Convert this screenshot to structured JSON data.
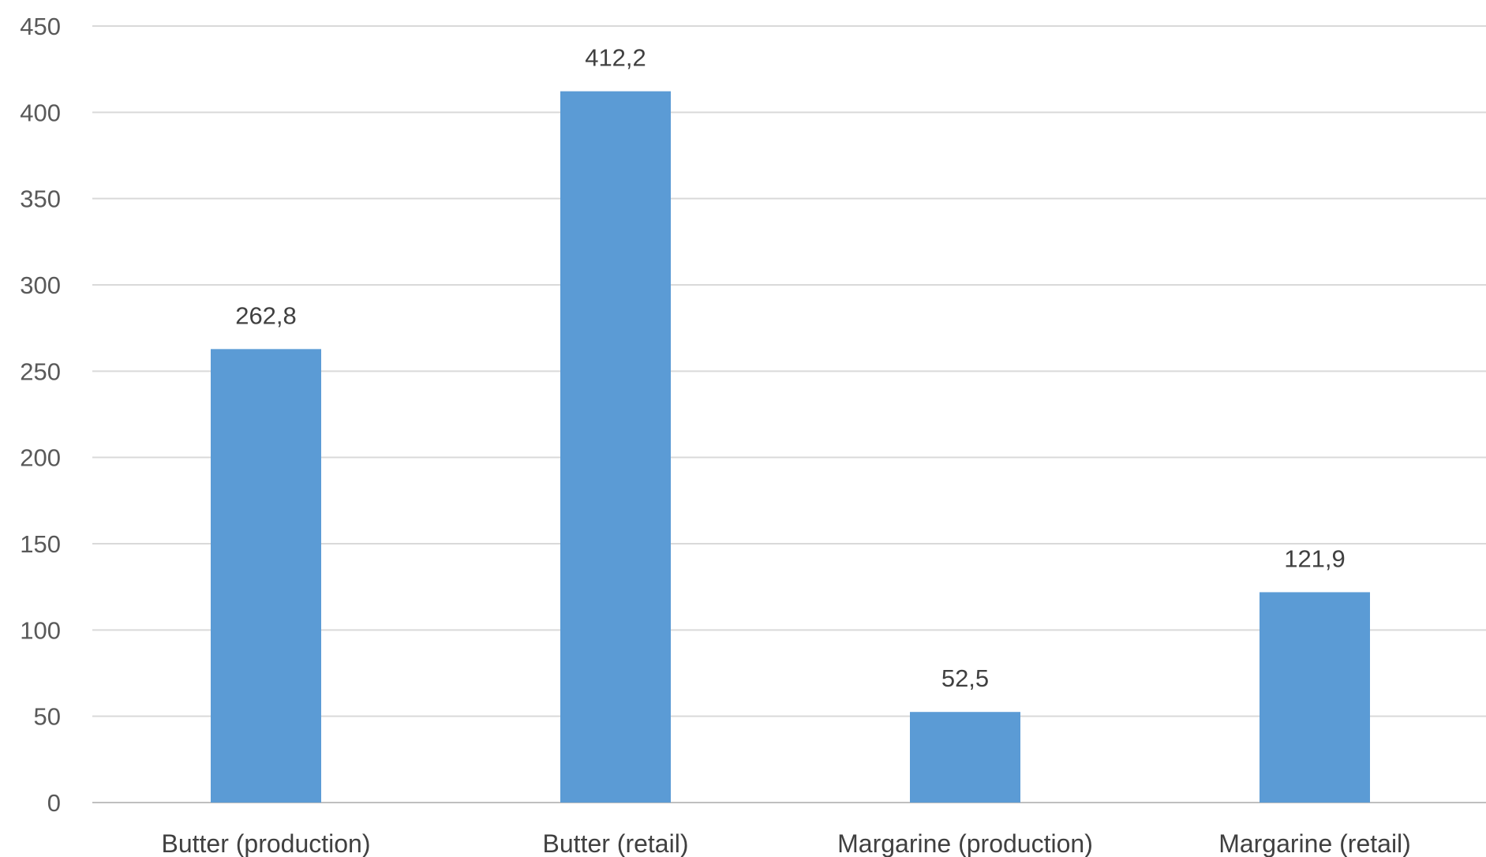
{
  "chart_data": {
    "type": "bar",
    "categories": [
      "Butter (production)",
      "Butter (retail)",
      "Margarine (production)",
      "Margarine (retail)"
    ],
    "values": [
      262.8,
      412.2,
      52.5,
      121.9
    ],
    "data_labels": [
      "262,8",
      "412,2",
      "52,5",
      "121,9"
    ],
    "ylim": [
      0,
      450
    ],
    "yticks": [
      0,
      50,
      100,
      150,
      200,
      250,
      300,
      350,
      400,
      450
    ],
    "grid": true,
    "legend": "none",
    "bar_color": "#5b9bd5"
  }
}
